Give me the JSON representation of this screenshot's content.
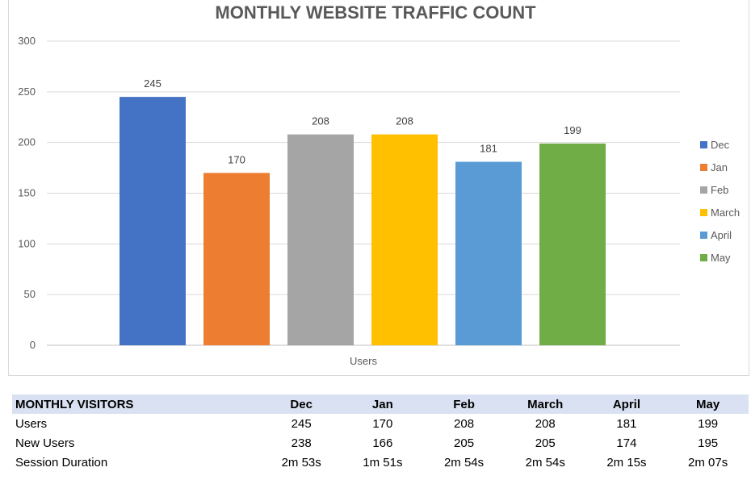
{
  "chart_data": {
    "type": "bar",
    "title": "MONTHLY WEBSITE TRAFFIC COUNT",
    "categories": [
      "Users"
    ],
    "xlabel": "",
    "ylabel": "",
    "ylim": [
      0,
      300
    ],
    "yticks": [
      0,
      50,
      100,
      150,
      200,
      250,
      300
    ],
    "grid": true,
    "legend_position": "right",
    "series": [
      {
        "name": "Dec",
        "values": [
          245
        ],
        "color": "#4472c4"
      },
      {
        "name": "Jan",
        "values": [
          170
        ],
        "color": "#ed7d31"
      },
      {
        "name": "Feb",
        "values": [
          208
        ],
        "color": "#a5a5a5"
      },
      {
        "name": "March",
        "values": [
          208
        ],
        "color": "#ffc000"
      },
      {
        "name": "April",
        "values": [
          181
        ],
        "color": "#5b9bd5"
      },
      {
        "name": "May",
        "values": [
          199
        ],
        "color": "#70ad47"
      }
    ]
  },
  "table": {
    "header": [
      "MONTHLY VISITORS",
      "Dec",
      "Jan",
      "Feb",
      "March",
      "April",
      "May"
    ],
    "rows": [
      [
        "Users",
        "245",
        "170",
        "208",
        "208",
        "181",
        "199"
      ],
      [
        "New Users",
        "238",
        "166",
        "205",
        "205",
        "174",
        "195"
      ],
      [
        "Session Duration",
        "2m 53s",
        "1m 51s",
        "2m 54s",
        "2m 54s",
        "2m 15s",
        "2m 07s"
      ]
    ]
  }
}
